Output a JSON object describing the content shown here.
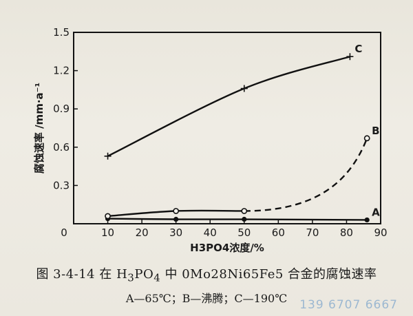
{
  "chart_data": {
    "type": "line",
    "title": "",
    "xlabel": "H3PO4浓度/%",
    "ylabel": "腐蚀速率 /mm·a⁻¹",
    "xlim": [
      0,
      90
    ],
    "ylim": [
      0,
      1.5
    ],
    "x_ticks": [
      "0",
      "10",
      "20",
      "30",
      "40",
      "50",
      "60",
      "70",
      "80",
      "90"
    ],
    "y_ticks": [
      "0.3",
      "0.6",
      "0.9",
      "1.2",
      "1.5"
    ],
    "grid": false,
    "series": [
      {
        "name": "A",
        "marker": "filled-circle",
        "line": "solid",
        "x": [
          10,
          30,
          50,
          86
        ],
        "y": [
          0.04,
          0.035,
          0.035,
          0.03
        ]
      },
      {
        "name": "B",
        "marker": "open-circle",
        "line": "solid-then-dashed",
        "x": [
          10,
          30,
          50,
          86
        ],
        "y": [
          0.06,
          0.1,
          0.1,
          0.67
        ]
      },
      {
        "name": "C",
        "marker": "plus",
        "line": "solid",
        "x": [
          10,
          50,
          81
        ],
        "y": [
          0.53,
          1.06,
          1.31
        ]
      }
    ]
  },
  "caption": {
    "prefix": "图 3-4-14  在 H",
    "sub1": "3",
    "mid1": "PO",
    "sub2": "4",
    "suffix": " 中 0Mo28Ni65Fe5 合金的腐蚀速率"
  },
  "legend_note": "A—65℃；B—沸腾；C—190℃",
  "watermark": "139 6707 6667"
}
